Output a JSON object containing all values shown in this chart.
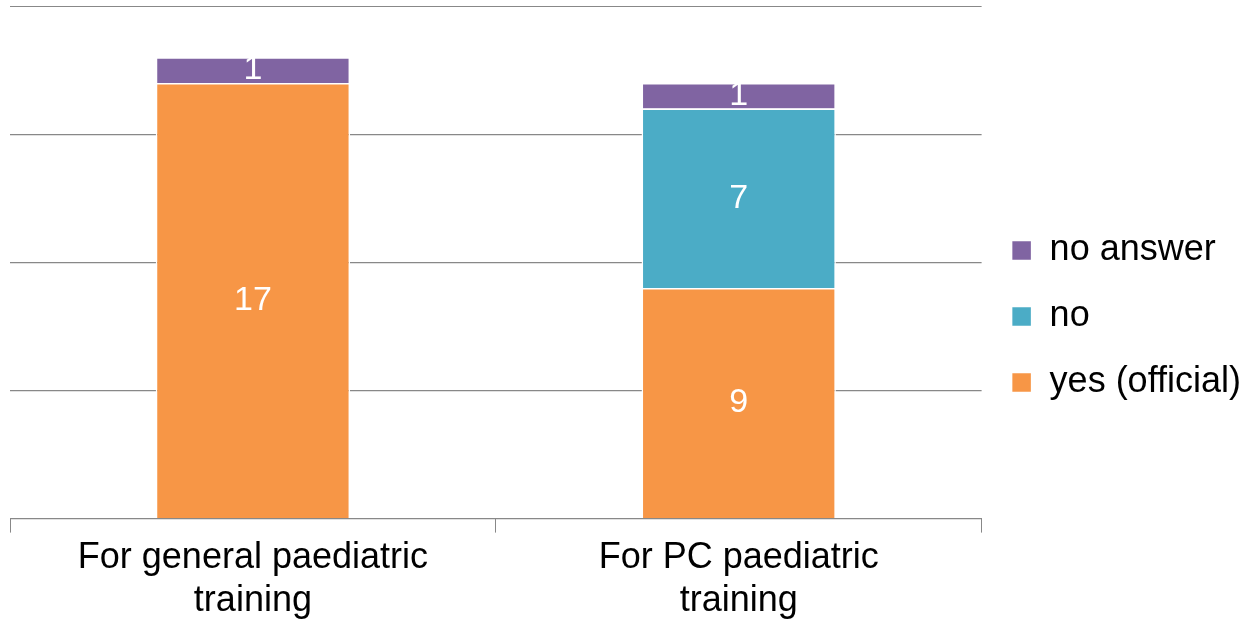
{
  "chart_data": {
    "type": "bar",
    "stacked": true,
    "categories": [
      "For general paediatric training",
      "For PC paediatric training"
    ],
    "series": [
      {
        "name": "yes (official)",
        "color": "#f79646",
        "values": [
          17,
          9
        ]
      },
      {
        "name": "no",
        "color": "#4bacc6",
        "values": [
          null,
          7
        ]
      },
      {
        "name": "no answer",
        "color": "#8064a2",
        "values": [
          1,
          1
        ]
      }
    ],
    "ylim": [
      0,
      20
    ],
    "yticks": [
      {
        "value": 0,
        "label": null
      },
      {
        "value": 5,
        "label": null
      },
      {
        "value": 10,
        "label": null
      },
      {
        "value": 15,
        "label": null
      }
    ],
    "grid": "y",
    "tick_labels": "x",
    "legend": "right",
    "data_labels": true
  }
}
